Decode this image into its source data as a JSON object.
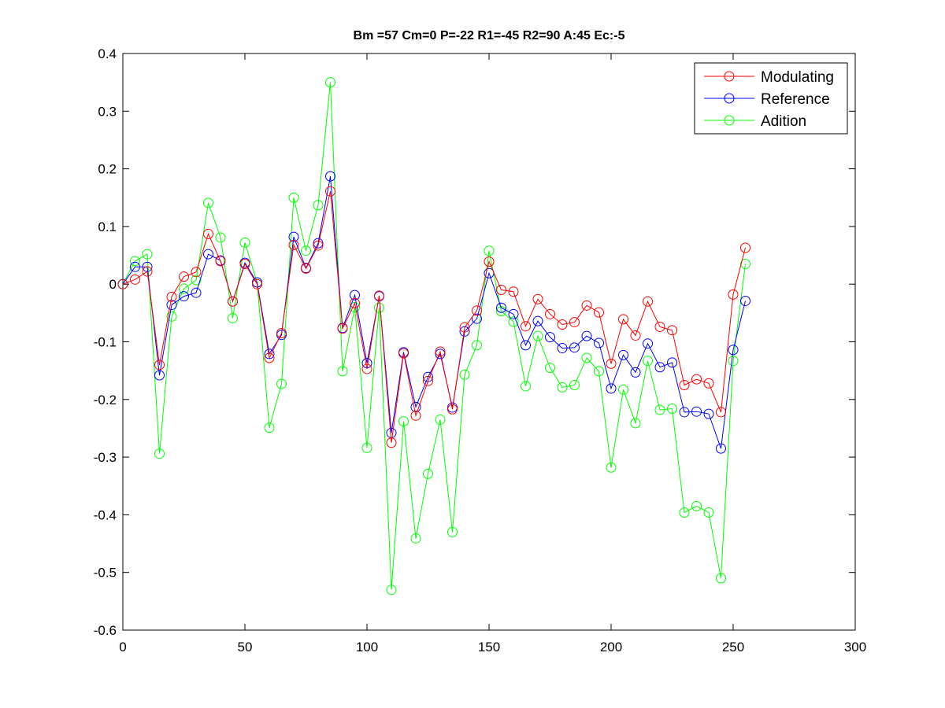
{
  "chart_data": {
    "type": "line",
    "title": "Bm =57  Cm=0  P=-22  R1=-45  R2=90  A:45  Ec:-5",
    "xlabel": "",
    "ylabel": "",
    "xlim": [
      0,
      300
    ],
    "ylim": [
      -0.6,
      0.4
    ],
    "xticks": [
      0,
      50,
      100,
      150,
      200,
      250,
      300
    ],
    "yticks": [
      0.4,
      0.3,
      0.2,
      0.1,
      0,
      -0.1,
      -0.2,
      -0.3,
      -0.4,
      -0.5,
      -0.6
    ],
    "xtick_labels": [
      "0",
      "50",
      "100",
      "150",
      "200",
      "250",
      "300"
    ],
    "ytick_labels": [
      "0.4",
      "0.3",
      "0.2",
      "0.1",
      "0",
      "-0.1",
      "-0.2",
      "-0.3",
      "-0.4",
      "-0.5",
      "-0.6"
    ],
    "grid": false,
    "legend_position": "top-right",
    "x": [
      0,
      5,
      10,
      15,
      20,
      25,
      30,
      35,
      40,
      45,
      50,
      55,
      60,
      65,
      70,
      75,
      80,
      85,
      90,
      95,
      100,
      105,
      110,
      115,
      120,
      125,
      130,
      135,
      140,
      145,
      150,
      155,
      160,
      165,
      170,
      175,
      180,
      185,
      190,
      195,
      200,
      205,
      210,
      215,
      220,
      225,
      230,
      235,
      240,
      245,
      250,
      255
    ],
    "series": [
      {
        "name": "Modulating",
        "color": "#ff0000",
        "values": [
          0.0,
          0.008,
          0.022,
          -0.14,
          -0.022,
          0.013,
          0.021,
          0.087,
          0.04,
          -0.03,
          0.035,
          0.0,
          -0.128,
          -0.085,
          0.068,
          0.027,
          0.067,
          0.161,
          -0.077,
          -0.033,
          -0.147,
          -0.02,
          -0.275,
          -0.12,
          -0.228,
          -0.168,
          -0.117,
          -0.217,
          -0.075,
          -0.046,
          0.039,
          -0.01,
          -0.013,
          -0.073,
          -0.026,
          -0.052,
          -0.07,
          -0.066,
          -0.037,
          -0.049,
          -0.138,
          -0.061,
          -0.089,
          -0.03,
          -0.074,
          -0.08,
          -0.175,
          -0.165,
          -0.172,
          -0.222,
          -0.018,
          0.063
        ]
      },
      {
        "name": "Reference",
        "color": "#0000ff",
        "values": [
          0.0,
          0.03,
          0.03,
          -0.158,
          -0.036,
          -0.021,
          -0.015,
          0.052,
          0.041,
          -0.03,
          0.037,
          0.003,
          -0.121,
          -0.088,
          0.082,
          0.028,
          0.071,
          0.187,
          -0.076,
          -0.019,
          -0.137,
          -0.021,
          -0.258,
          -0.118,
          -0.213,
          -0.161,
          -0.121,
          -0.214,
          -0.082,
          -0.06,
          0.019,
          -0.041,
          -0.052,
          -0.106,
          -0.064,
          -0.092,
          -0.111,
          -0.11,
          -0.09,
          -0.102,
          -0.181,
          -0.123,
          -0.153,
          -0.103,
          -0.144,
          -0.136,
          -0.222,
          -0.221,
          -0.225,
          -0.285,
          -0.114,
          -0.029
        ]
      },
      {
        "name": "Adition",
        "color": "#00ff00",
        "values": [
          0.0,
          0.04,
          0.052,
          -0.294,
          -0.056,
          -0.008,
          0.007,
          0.141,
          0.081,
          -0.059,
          0.072,
          0.003,
          -0.249,
          -0.173,
          0.15,
          0.058,
          0.137,
          0.35,
          -0.151,
          -0.04,
          -0.284,
          -0.041,
          -0.53,
          -0.238,
          -0.441,
          -0.329,
          -0.235,
          -0.43,
          -0.157,
          -0.106,
          0.058,
          -0.047,
          -0.065,
          -0.177,
          -0.09,
          -0.145,
          -0.179,
          -0.175,
          -0.128,
          -0.151,
          -0.318,
          -0.183,
          -0.241,
          -0.133,
          -0.218,
          -0.216,
          -0.396,
          -0.385,
          -0.396,
          -0.51,
          -0.133,
          0.035
        ]
      }
    ]
  }
}
